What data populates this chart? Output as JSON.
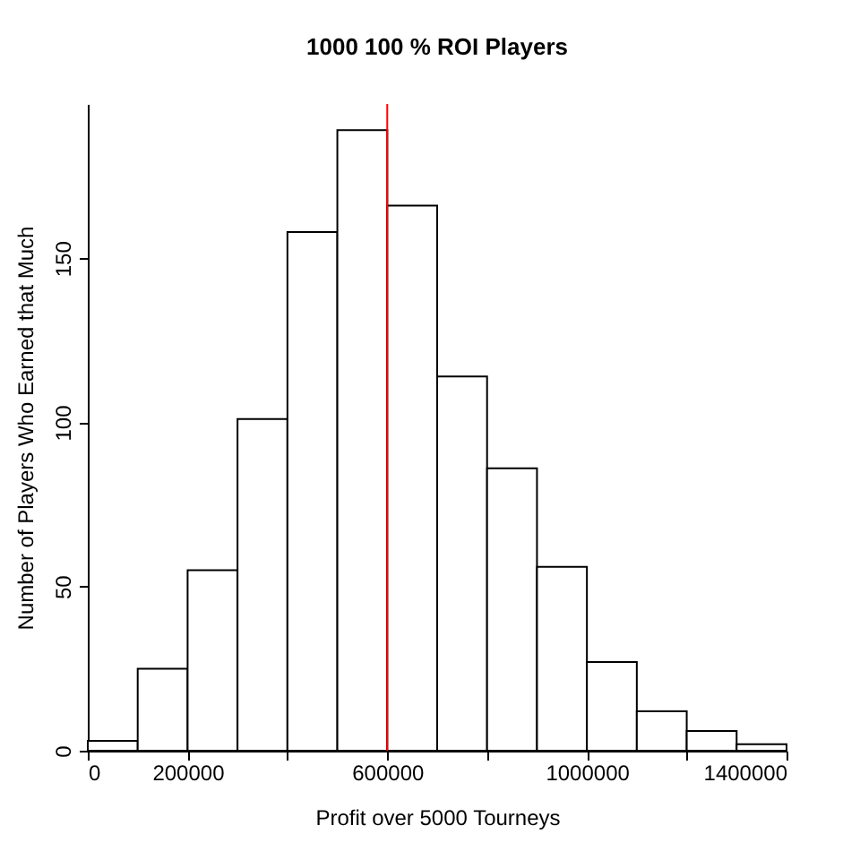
{
  "chart_data": {
    "type": "histogram",
    "title": "1000 100 % ROI Players",
    "xlabel": "Profit over 5000 Tourneys",
    "ylabel": "Number of Players Who Earned that Much",
    "bins": [
      0,
      100000,
      200000,
      300000,
      400000,
      500000,
      600000,
      700000,
      800000,
      900000,
      1000000,
      1100000,
      1200000,
      1300000,
      1400000
    ],
    "values": [
      3,
      25,
      55,
      101,
      158,
      189,
      166,
      114,
      86,
      56,
      27,
      12,
      6,
      2
    ],
    "color": "#ffffff",
    "xlim": [
      0,
      1400000
    ],
    "ylim": [
      0,
      197
    ],
    "xticks": [
      0,
      {
        "value": 200000,
        "label": "200000"
      },
      {
        "value": 400000,
        "label": null
      },
      600000,
      {
        "value": 800000,
        "label": null
      },
      1000000,
      {
        "value": 1200000,
        "label": null
      },
      1400000
    ],
    "yticks": [
      0,
      50,
      100,
      150
    ],
    "ref_lines": [
      {
        "axis": "x",
        "value": 600000,
        "color": "#ff0000"
      }
    ],
    "grid": false
  }
}
